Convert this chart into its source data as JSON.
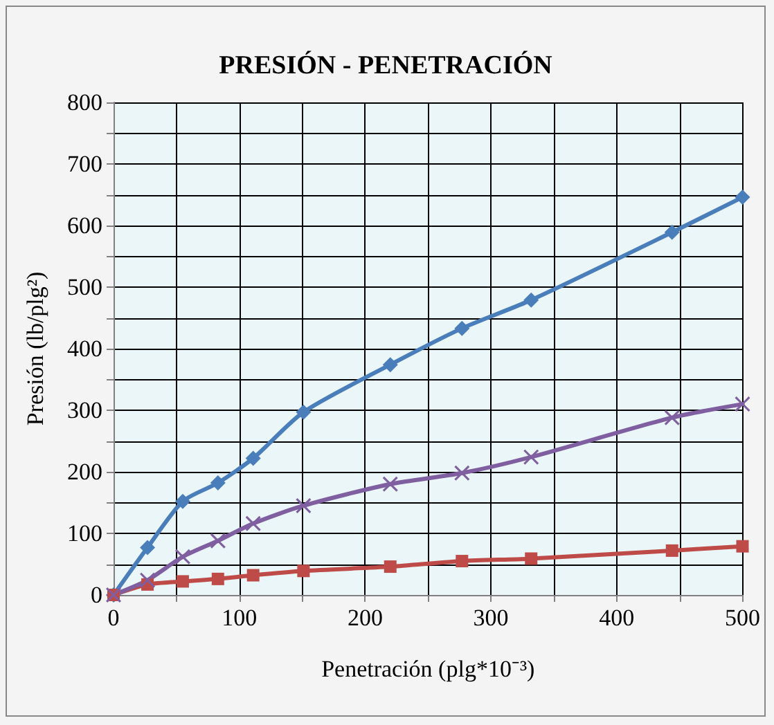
{
  "chart_data": {
    "type": "line",
    "title": "PRESIÓN - PENETRACIÓN",
    "xlabel": "Penetración (plg*10⁻³)",
    "ylabel": "Presión (lb/plg²)",
    "x": [
      0,
      27,
      55,
      83,
      111,
      151,
      220,
      277,
      332,
      444,
      500
    ],
    "series": [
      {
        "color": "#4a7ebb",
        "marker": "diamond",
        "values": [
          0,
          77,
          152,
          182,
          222,
          297,
          374,
          433,
          479,
          589,
          646
        ]
      },
      {
        "color": "#be4b48",
        "marker": "square",
        "values": [
          0,
          17,
          22,
          26,
          32,
          39,
          46,
          55,
          59,
          72,
          79
        ]
      },
      {
        "color": "#7f5fa0",
        "marker": "cross",
        "values": [
          0,
          24,
          62,
          88,
          116,
          145,
          180,
          198,
          224,
          288,
          310
        ]
      }
    ],
    "xlim": [
      0,
      500
    ],
    "ylim": [
      0,
      800
    ],
    "xticks": [
      0,
      {
        "value": 50,
        "label": null
      },
      100,
      {
        "value": 150,
        "label": null
      },
      200,
      {
        "value": 250,
        "label": null
      },
      300,
      {
        "value": 350,
        "label": null
      },
      400,
      {
        "value": 450,
        "label": null
      },
      500
    ],
    "yticks": [
      0,
      {
        "value": 50,
        "label": null
      },
      100,
      {
        "value": 150,
        "label": null
      },
      200,
      {
        "value": 250,
        "label": null
      },
      300,
      {
        "value": 350,
        "label": null
      },
      400,
      {
        "value": 450,
        "label": null
      },
      500,
      {
        "value": 550,
        "label": null
      },
      600,
      {
        "value": 650,
        "label": null
      },
      700,
      {
        "value": 750,
        "label": null
      },
      800
    ],
    "grid": true,
    "line_style": "solid"
  }
}
